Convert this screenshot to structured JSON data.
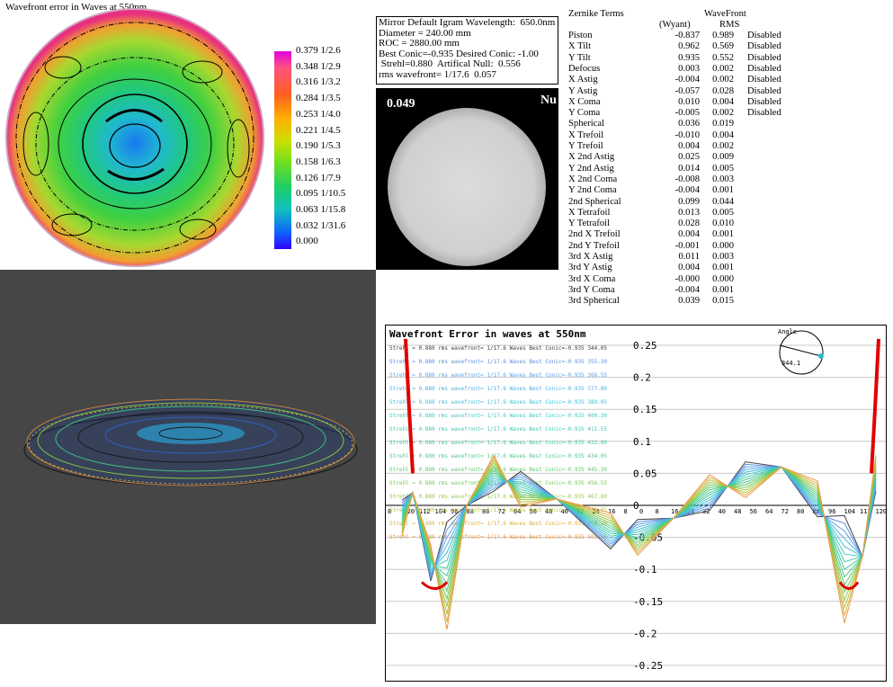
{
  "contour": {
    "title": "Wavefront error in Waves at 550nm",
    "legend": [
      "0.379 1/2.6",
      "0.348 1/2.9",
      "0.316 1/3.2",
      "0.284 1/3.5",
      "0.253 1/4.0",
      "0.221 1/4.5",
      "0.190 1/5.3",
      "0.158 1/6.3",
      "0.126 1/7.9",
      "0.095 1/10.5",
      "0.063 1/15.8",
      "0.032 1/31.6",
      "0.000"
    ]
  },
  "status": {
    "lines": [
      "Mirror Default Igram Wavelength:  650.0nm",
      "Diameter = 240.00 mm",
      "ROC = 2880.00 mm",
      "Best Conic=-0.935 Desired Conic: -1.00",
      " Strehl=0.880  Artifical Null:  0.556",
      "rms wavefront= 1/17.6  0.057"
    ]
  },
  "igram": {
    "left_label": "0.049",
    "right_label": "Nu"
  },
  "zernike": {
    "title": "Zernike Terms",
    "col_wyant": "(Wyant)",
    "col_wavefront": "WaveFront",
    "col_rms": "RMS",
    "terms": [
      {
        "name": "Piston",
        "wyant": "-0.837",
        "rms": "0.989",
        "status": "Disabled"
      },
      {
        "name": "X Tilt",
        "wyant": "0.962",
        "rms": "0.569",
        "status": "Disabled"
      },
      {
        "name": "Y Tilt",
        "wyant": "0.935",
        "rms": "0.552",
        "status": "Disabled"
      },
      {
        "name": "Defocus",
        "wyant": "0.003",
        "rms": "0.002",
        "status": "Disabled"
      },
      {
        "name": "X Astig",
        "wyant": "-0.004",
        "rms": "0.002",
        "status": "Disabled"
      },
      {
        "name": "Y Astig",
        "wyant": "-0.057",
        "rms": "0.028",
        "status": "Disabled"
      },
      {
        "name": "X Coma",
        "wyant": "0.010",
        "rms": "0.004",
        "status": "Disabled"
      },
      {
        "name": "Y Coma",
        "wyant": "-0.005",
        "rms": "0.002",
        "status": "Disabled"
      },
      {
        "name": "Spherical",
        "wyant": "0.036",
        "rms": "0.019",
        "status": ""
      },
      {
        "name": "X Trefoil",
        "wyant": "-0.010",
        "rms": "0.004",
        "status": ""
      },
      {
        "name": "Y Trefoil",
        "wyant": "0.004",
        "rms": "0.002",
        "status": ""
      },
      {
        "name": "X 2nd Astig",
        "wyant": "0.025",
        "rms": "0.009",
        "status": ""
      },
      {
        "name": "Y 2nd Astig",
        "wyant": "0.014",
        "rms": "0.005",
        "status": ""
      },
      {
        "name": "X 2nd Coma",
        "wyant": "-0.008",
        "rms": "0.003",
        "status": ""
      },
      {
        "name": "Y 2nd Coma",
        "wyant": "-0.004",
        "rms": "0.001",
        "status": ""
      },
      {
        "name": "2nd Spherical",
        "wyant": "0.099",
        "rms": "0.044",
        "status": ""
      },
      {
        "name": "X Tetrafoil",
        "wyant": "0.013",
        "rms": "0.005",
        "status": ""
      },
      {
        "name": "Y Tetrafoil",
        "wyant": "0.028",
        "rms": "0.010",
        "status": ""
      },
      {
        "name": "2nd X Trefoil",
        "wyant": "0.004",
        "rms": "0.001",
        "status": ""
      },
      {
        "name": "2nd Y Trefoil",
        "wyant": "-0.001",
        "rms": "0.000",
        "status": ""
      },
      {
        "name": "3rd X Astig",
        "wyant": "0.011",
        "rms": "0.003",
        "status": ""
      },
      {
        "name": "3rd Y Astig",
        "wyant": "0.004",
        "rms": "0.001",
        "status": ""
      },
      {
        "name": "3rd X Coma",
        "wyant": "-0.000",
        "rms": "0.000",
        "status": ""
      },
      {
        "name": "3rd Y Coma",
        "wyant": "-0.004",
        "rms": "0.001",
        "status": ""
      },
      {
        "name": "3rd Spherical",
        "wyant": "0.039",
        "rms": "0.015",
        "status": ""
      }
    ]
  },
  "profile": {
    "title": "Wavefront Error in waves at 550nm",
    "angle_label": "Angle",
    "angle_value": "344.1",
    "legend": [
      {
        "text": "Strehl = 0.880 rms wavefront= 1/17.6 Waves Best Conic=-0.935 344.05",
        "color": "#404040"
      },
      {
        "text": "Strehl = 0.880 rms wavefront= 1/17.6 Waves Best Conic=-0.935 355.30",
        "color": "#5a8ee0"
      },
      {
        "text": "Strehl = 0.880 rms wavefront= 1/17.6 Waves Best Conic=-0.935 366.55",
        "color": "#5aa0e8"
      },
      {
        "text": "Strehl = 0.880 rms wavefront= 1/17.6 Waves Best Conic=-0.935 377.80",
        "color": "#50b0e0"
      },
      {
        "text": "Strehl = 0.880 rms wavefront= 1/17.6 Waves Best Conic=-0.935 389.05",
        "color": "#40c0d8"
      },
      {
        "text": "Strehl = 0.880 rms wavefront= 1/17.6 Waves Best Conic=-0.935 400.30",
        "color": "#40c8c0"
      },
      {
        "text": "Strehl = 0.880 rms wavefront= 1/17.6 Waves Best Conic=-0.935 411.55",
        "color": "#40c8b0"
      },
      {
        "text": "Strehl = 0.880 rms wavefront= 1/17.6 Waves Best Conic=-0.935 422.80",
        "color": "#48c8a0"
      },
      {
        "text": "Strehl = 0.880 rms wavefront= 1/17.6 Waves Best Conic=-0.935 434.05",
        "color": "#50c888"
      },
      {
        "text": "Strehl = 0.880 rms wavefront= 1/17.6 Waves Best Conic=-0.935 445.30",
        "color": "#60c870"
      },
      {
        "text": "Strehl = 0.880 rms wavefront= 1/17.6 Waves Best Conic=-0.935 456.55",
        "color": "#78c858"
      },
      {
        "text": "Strehl = 0.880 rms wavefront= 1/17.6 Waves Best Conic=-0.935 467.80",
        "color": "#98c848"
      },
      {
        "text": "Strehl = 0.880 rms wavefront= 1/17.6 Waves Best Conic=-0.935 479.05",
        "color": "#b8c040"
      },
      {
        "text": "Strehl = 0.880 rms wavefront= 1/17.6 Waves Best Conic=-0.935 490.30",
        "color": "#d8b040"
      },
      {
        "text": "Strehl = 0.880 rms wavefront= 1/17.6 Waves Best Conic=-0.935 501.55",
        "color": "#e89848"
      }
    ],
    "x_ticks": [
      "8",
      "120",
      "112",
      "104",
      "96",
      "88",
      "80",
      "72",
      "64",
      "56",
      "48",
      "40",
      "32",
      "24",
      "16",
      "8",
      "0",
      "8",
      "16",
      "24",
      "32",
      "40",
      "48",
      "56",
      "64",
      "72",
      "80",
      "88",
      "96",
      "104",
      "112",
      "120"
    ],
    "y_ticks": [
      "0.25",
      "0.2",
      "0.15",
      "0.1",
      "0.05",
      "0",
      "-0.05",
      "-0.1",
      "-0.15",
      "-0.2",
      "-0.25"
    ]
  }
}
